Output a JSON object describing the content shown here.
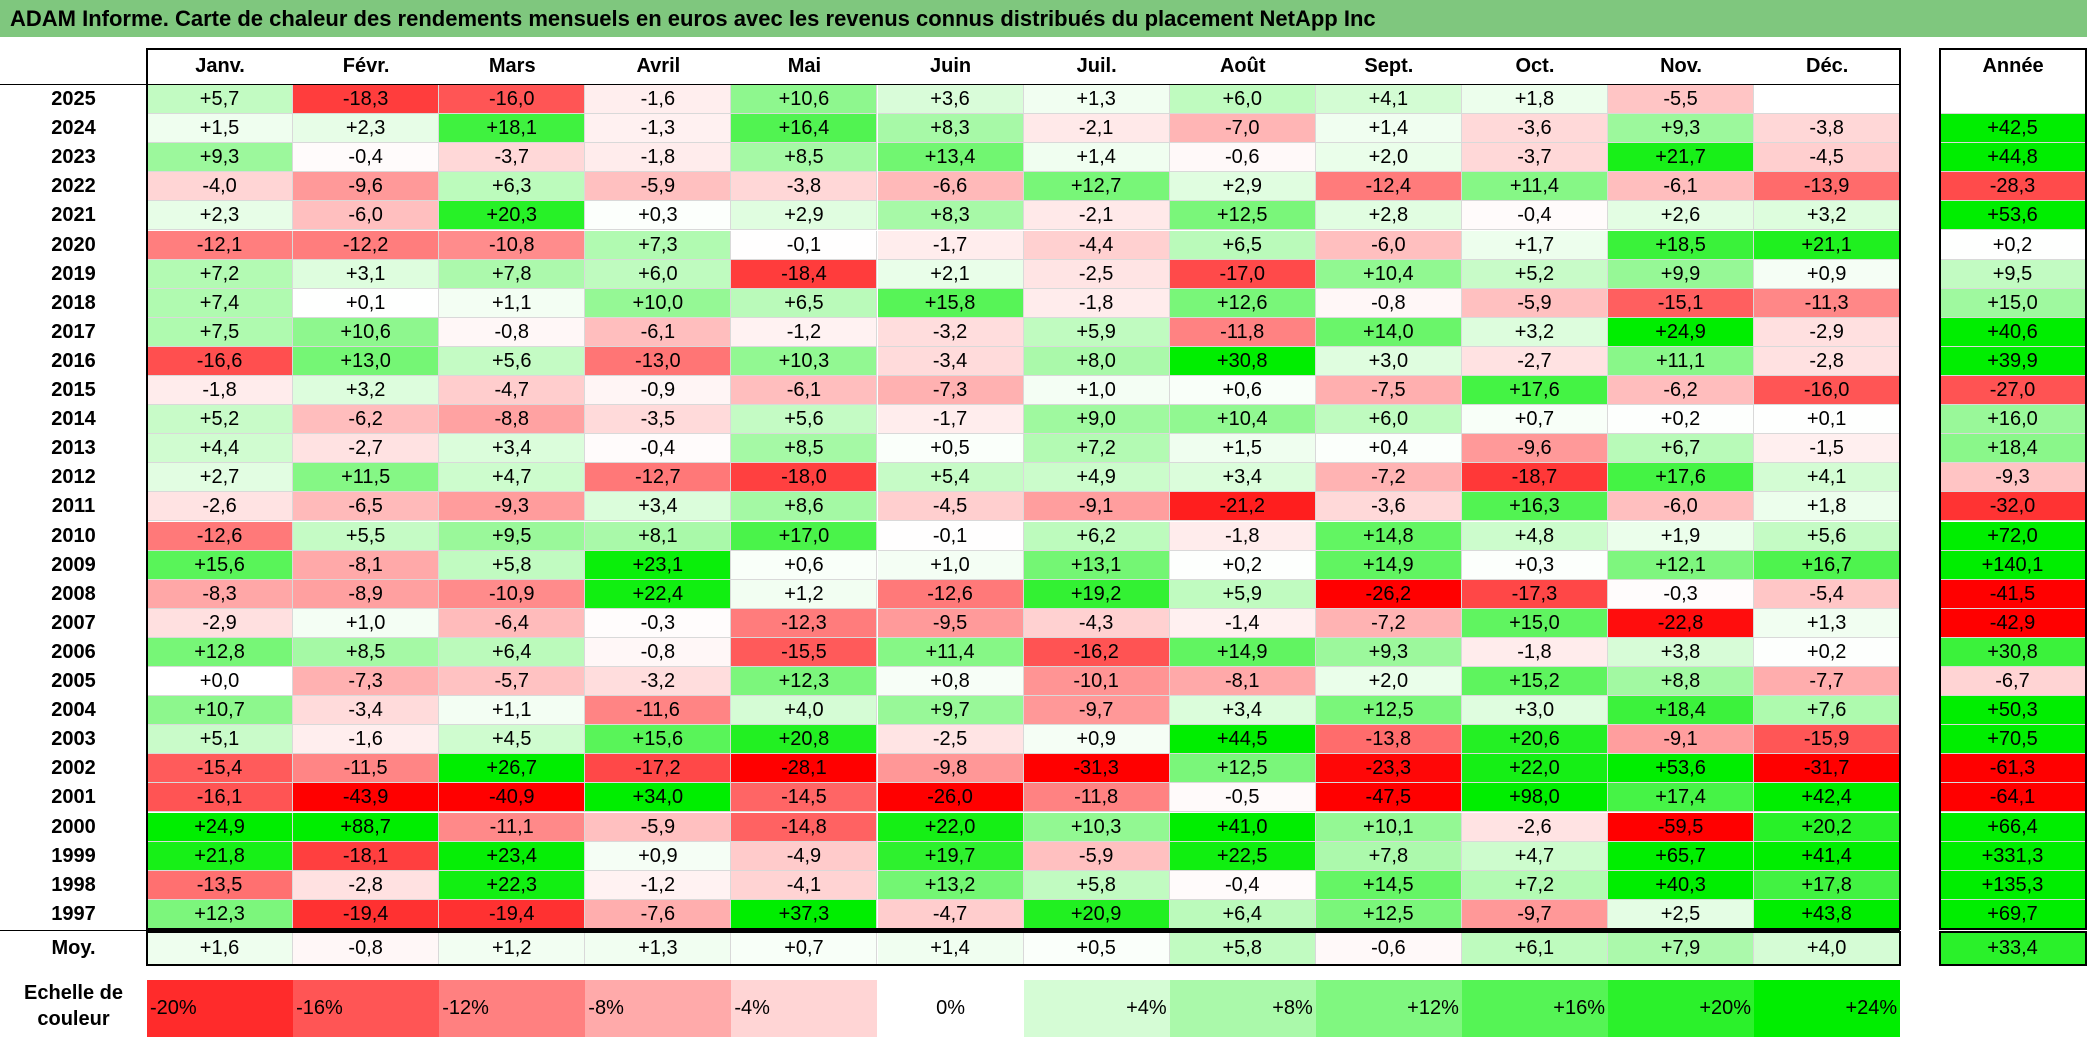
{
  "title": "ADAM Informe. Carte de chaleur des rendements mensuels en euros avec les revenus connus distribués du placement NetApp Inc",
  "chart_data": {
    "type": "heatmap",
    "title": "ADAM Informe. Carte de chaleur des rendements mensuels en euros avec les revenus connus distribués du placement NetApp Inc",
    "months": [
      "Janv.",
      "Févr.",
      "Mars",
      "Avril",
      "Mai",
      "Juin",
      "Juil.",
      "Août",
      "Sept.",
      "Oct.",
      "Nov.",
      "Déc."
    ],
    "year_header": "Année",
    "rows": [
      {
        "year": "2025",
        "values": [
          "+5,7",
          "-18,3",
          "-16,0",
          "-1,6",
          "+10,6",
          "+3,6",
          "+1,3",
          "+6,0",
          "+4,1",
          "+1,8",
          "-5,5",
          ""
        ],
        "annual": ""
      },
      {
        "year": "2024",
        "values": [
          "+1,5",
          "+2,3",
          "+18,1",
          "-1,3",
          "+16,4",
          "+8,3",
          "-2,1",
          "-7,0",
          "+1,4",
          "-3,6",
          "+9,3",
          "-3,8"
        ],
        "annual": "+42,5"
      },
      {
        "year": "2023",
        "values": [
          "+9,3",
          "-0,4",
          "-3,7",
          "-1,8",
          "+8,5",
          "+13,4",
          "+1,4",
          "-0,6",
          "+2,0",
          "-3,7",
          "+21,7",
          "-4,5"
        ],
        "annual": "+44,8"
      },
      {
        "year": "2022",
        "values": [
          "-4,0",
          "-9,6",
          "+6,3",
          "-5,9",
          "-3,8",
          "-6,6",
          "+12,7",
          "+2,9",
          "-12,4",
          "+11,4",
          "-6,1",
          "-13,9"
        ],
        "annual": "-28,3"
      },
      {
        "year": "2021",
        "values": [
          "+2,3",
          "-6,0",
          "+20,3",
          "+0,3",
          "+2,9",
          "+8,3",
          "-2,1",
          "+12,5",
          "+2,8",
          "-0,4",
          "+2,6",
          "+3,2"
        ],
        "annual": "+53,6"
      },
      {
        "year": "2020",
        "values": [
          "-12,1",
          "-12,2",
          "-10,8",
          "+7,3",
          "-0,1",
          "-1,7",
          "-4,4",
          "+6,5",
          "-6,0",
          "+1,7",
          "+18,5",
          "+21,1"
        ],
        "annual": "+0,2"
      },
      {
        "year": "2019",
        "values": [
          "+7,2",
          "+3,1",
          "+7,8",
          "+6,0",
          "-18,4",
          "+2,1",
          "-2,5",
          "-17,0",
          "+10,4",
          "+5,2",
          "+9,9",
          "+0,9"
        ],
        "annual": "+9,5"
      },
      {
        "year": "2018",
        "values": [
          "+7,4",
          "+0,1",
          "+1,1",
          "+10,0",
          "+6,5",
          "+15,8",
          "-1,8",
          "+12,6",
          "-0,8",
          "-5,9",
          "-15,1",
          "-11,3"
        ],
        "annual": "+15,0"
      },
      {
        "year": "2017",
        "values": [
          "+7,5",
          "+10,6",
          "-0,8",
          "-6,1",
          "-1,2",
          "-3,2",
          "+5,9",
          "-11,8",
          "+14,0",
          "+3,2",
          "+24,9",
          "-2,9"
        ],
        "annual": "+40,6"
      },
      {
        "year": "2016",
        "values": [
          "-16,6",
          "+13,0",
          "+5,6",
          "-13,0",
          "+10,3",
          "-3,4",
          "+8,0",
          "+30,8",
          "+3,0",
          "-2,7",
          "+11,1",
          "-2,8"
        ],
        "annual": "+39,9"
      },
      {
        "year": "2015",
        "values": [
          "-1,8",
          "+3,2",
          "-4,7",
          "-0,9",
          "-6,1",
          "-7,3",
          "+1,0",
          "+0,6",
          "-7,5",
          "+17,6",
          "-6,2",
          "-16,0"
        ],
        "annual": "-27,0"
      },
      {
        "year": "2014",
        "values": [
          "+5,2",
          "-6,2",
          "-8,8",
          "-3,5",
          "+5,6",
          "-1,7",
          "+9,0",
          "+10,4",
          "+6,0",
          "+0,7",
          "+0,2",
          "+0,1"
        ],
        "annual": "+16,0"
      },
      {
        "year": "2013",
        "values": [
          "+4,4",
          "-2,7",
          "+3,4",
          "-0,4",
          "+8,5",
          "+0,5",
          "+7,2",
          "+1,5",
          "+0,4",
          "-9,6",
          "+6,7",
          "-1,5"
        ],
        "annual": "+18,4"
      },
      {
        "year": "2012",
        "values": [
          "+2,7",
          "+11,5",
          "+4,7",
          "-12,7",
          "-18,0",
          "+5,4",
          "+4,9",
          "+3,4",
          "-7,2",
          "-18,7",
          "+17,6",
          "+4,1"
        ],
        "annual": "-9,3"
      },
      {
        "year": "2011",
        "values": [
          "-2,6",
          "-6,5",
          "-9,3",
          "+3,4",
          "+8,6",
          "-4,5",
          "-9,1",
          "-21,2",
          "-3,6",
          "+16,3",
          "-6,0",
          "+1,8"
        ],
        "annual": "-32,0"
      },
      {
        "year": "2010",
        "values": [
          "-12,6",
          "+5,5",
          "+9,5",
          "+8,1",
          "+17,0",
          "-0,1",
          "+6,2",
          "-1,8",
          "+14,8",
          "+4,8",
          "+1,9",
          "+5,6"
        ],
        "annual": "+72,0"
      },
      {
        "year": "2009",
        "values": [
          "+15,6",
          "-8,1",
          "+5,8",
          "+23,1",
          "+0,6",
          "+1,0",
          "+13,1",
          "+0,2",
          "+14,9",
          "+0,3",
          "+12,1",
          "+16,7"
        ],
        "annual": "+140,1"
      },
      {
        "year": "2008",
        "values": [
          "-8,3",
          "-8,9",
          "-10,9",
          "+22,4",
          "+1,2",
          "-12,6",
          "+19,2",
          "+5,9",
          "-26,2",
          "-17,3",
          "-0,3",
          "-5,4"
        ],
        "annual": "-41,5"
      },
      {
        "year": "2007",
        "values": [
          "-2,9",
          "+1,0",
          "-6,4",
          "-0,3",
          "-12,3",
          "-9,5",
          "-4,3",
          "-1,4",
          "-7,2",
          "+15,0",
          "-22,8",
          "+1,3"
        ],
        "annual": "-42,9"
      },
      {
        "year": "2006",
        "values": [
          "+12,8",
          "+8,5",
          "+6,4",
          "-0,8",
          "-15,5",
          "+11,4",
          "-16,2",
          "+14,9",
          "+9,3",
          "-1,8",
          "+3,8",
          "+0,2"
        ],
        "annual": "+30,8"
      },
      {
        "year": "2005",
        "values": [
          "+0,0",
          "-7,3",
          "-5,7",
          "-3,2",
          "+12,3",
          "+0,8",
          "-10,1",
          "-8,1",
          "+2,0",
          "+15,2",
          "+8,8",
          "-7,7"
        ],
        "annual": "-6,7"
      },
      {
        "year": "2004",
        "values": [
          "+10,7",
          "-3,4",
          "+1,1",
          "-11,6",
          "+4,0",
          "+9,7",
          "-9,7",
          "+3,4",
          "+12,5",
          "+3,0",
          "+18,4",
          "+7,6"
        ],
        "annual": "+50,3"
      },
      {
        "year": "2003",
        "values": [
          "+5,1",
          "-1,6",
          "+4,5",
          "+15,6",
          "+20,8",
          "-2,5",
          "+0,9",
          "+44,5",
          "-13,8",
          "+20,6",
          "-9,1",
          "-15,9"
        ],
        "annual": "+70,5"
      },
      {
        "year": "2002",
        "values": [
          "-15,4",
          "-11,5",
          "+26,7",
          "-17,2",
          "-28,1",
          "-9,8",
          "-31,3",
          "+12,5",
          "-23,3",
          "+22,0",
          "+53,6",
          "-31,7"
        ],
        "annual": "-61,3"
      },
      {
        "year": "2001",
        "values": [
          "-16,1",
          "-43,9",
          "-40,9",
          "+34,0",
          "-14,5",
          "-26,0",
          "-11,8",
          "-0,5",
          "-47,5",
          "+98,0",
          "+17,4",
          "+42,4"
        ],
        "annual": "-64,1"
      },
      {
        "year": "2000",
        "values": [
          "+24,9",
          "+88,7",
          "-11,1",
          "-5,9",
          "-14,8",
          "+22,0",
          "+10,3",
          "+41,0",
          "+10,1",
          "-2,6",
          "-59,5",
          "+20,2"
        ],
        "annual": "+66,4"
      },
      {
        "year": "1999",
        "values": [
          "+21,8",
          "-18,1",
          "+23,4",
          "+0,9",
          "-4,9",
          "+19,7",
          "-5,9",
          "+22,5",
          "+7,8",
          "+4,7",
          "+65,7",
          "+41,4"
        ],
        "annual": "+331,3"
      },
      {
        "year": "1998",
        "values": [
          "-13,5",
          "-2,8",
          "+22,3",
          "-1,2",
          "-4,1",
          "+13,2",
          "+5,8",
          "-0,4",
          "+14,5",
          "+7,2",
          "+40,3",
          "+17,8"
        ],
        "annual": "+135,3"
      },
      {
        "year": "1997",
        "values": [
          "+12,3",
          "-19,4",
          "-19,4",
          "-7,6",
          "+37,3",
          "-4,7",
          "+20,9",
          "+6,4",
          "+12,5",
          "-9,7",
          "+2,5",
          "+43,8"
        ],
        "annual": "+69,7"
      }
    ],
    "average": {
      "label": "Moy.",
      "values": [
        "+1,6",
        "-0,8",
        "+1,2",
        "+1,3",
        "+0,7",
        "+1,4",
        "+0,5",
        "+5,8",
        "-0,6",
        "+6,1",
        "+7,9",
        "+4,0"
      ],
      "annual": "+33,4"
    },
    "scale": {
      "label": "Echelle de couleur",
      "steps": [
        "-20%",
        "-16%",
        "-12%",
        "-8%",
        "-4%",
        "0%",
        "+4%",
        "+8%",
        "+12%",
        "+16%",
        "+20%",
        "+24%"
      ]
    },
    "colors": {
      "negative_max": "#ff0000",
      "neutral": "#ffffff",
      "positive_max": "#00ee00",
      "title_bg": "#7fc77e"
    }
  }
}
